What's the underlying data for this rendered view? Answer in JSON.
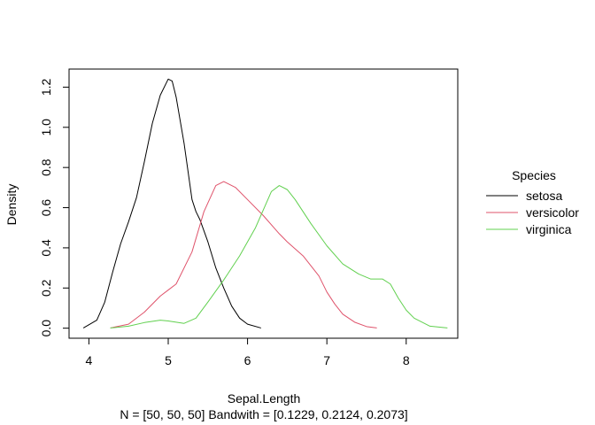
{
  "chart_data": {
    "type": "line",
    "title": "",
    "xlabel": "Sepal.Length",
    "xlabel_sub": "N = [50, 50, 50]   Bandwith = [0.1229, 0.2124, 0.2073]",
    "ylabel": "Density",
    "xlim": [
      3.75,
      8.65
    ],
    "ylim": [
      -0.05,
      1.29
    ],
    "xticks": [
      4,
      5,
      6,
      7,
      8
    ],
    "yticks": [
      0.0,
      0.2,
      0.4,
      0.6,
      0.8,
      1.0,
      1.2
    ],
    "ytick_labels": [
      "0.0",
      "0.2",
      "0.4",
      "0.6",
      "0.8",
      "1.0",
      "1.2"
    ],
    "grid": false,
    "legend": {
      "title": "Species",
      "placement": "right",
      "entries": [
        "setosa",
        "versicolor",
        "virginica"
      ]
    },
    "series": [
      {
        "name": "setosa",
        "color": "#000000",
        "points": [
          [
            3.93,
            0.001
          ],
          [
            4.1,
            0.04
          ],
          [
            4.2,
            0.13
          ],
          [
            4.3,
            0.28
          ],
          [
            4.4,
            0.42
          ],
          [
            4.5,
            0.53
          ],
          [
            4.6,
            0.65
          ],
          [
            4.7,
            0.83
          ],
          [
            4.8,
            1.02
          ],
          [
            4.9,
            1.16
          ],
          [
            5.0,
            1.24
          ],
          [
            5.05,
            1.23
          ],
          [
            5.1,
            1.15
          ],
          [
            5.2,
            0.92
          ],
          [
            5.3,
            0.64
          ],
          [
            5.35,
            0.58
          ],
          [
            5.4,
            0.54
          ],
          [
            5.5,
            0.43
          ],
          [
            5.6,
            0.3
          ],
          [
            5.7,
            0.2
          ],
          [
            5.8,
            0.11
          ],
          [
            5.9,
            0.05
          ],
          [
            6.0,
            0.02
          ],
          [
            6.17,
            0.001
          ]
        ]
      },
      {
        "name": "versicolor",
        "color": "#DF536B",
        "points": [
          [
            4.27,
            0.001
          ],
          [
            4.5,
            0.02
          ],
          [
            4.7,
            0.08
          ],
          [
            4.9,
            0.16
          ],
          [
            5.0,
            0.19
          ],
          [
            5.1,
            0.22
          ],
          [
            5.3,
            0.38
          ],
          [
            5.45,
            0.58
          ],
          [
            5.6,
            0.71
          ],
          [
            5.7,
            0.73
          ],
          [
            5.85,
            0.7
          ],
          [
            6.0,
            0.64
          ],
          [
            6.2,
            0.56
          ],
          [
            6.4,
            0.47
          ],
          [
            6.5,
            0.43
          ],
          [
            6.7,
            0.36
          ],
          [
            6.9,
            0.26
          ],
          [
            7.0,
            0.18
          ],
          [
            7.1,
            0.12
          ],
          [
            7.2,
            0.07
          ],
          [
            7.35,
            0.03
          ],
          [
            7.5,
            0.008
          ],
          [
            7.63,
            0.001
          ]
        ]
      },
      {
        "name": "virginica",
        "color": "#61D04F",
        "points": [
          [
            4.27,
            0.001
          ],
          [
            4.5,
            0.01
          ],
          [
            4.7,
            0.028
          ],
          [
            4.9,
            0.04
          ],
          [
            5.0,
            0.036
          ],
          [
            5.2,
            0.024
          ],
          [
            5.35,
            0.05
          ],
          [
            5.5,
            0.13
          ],
          [
            5.7,
            0.24
          ],
          [
            5.9,
            0.36
          ],
          [
            6.1,
            0.5
          ],
          [
            6.2,
            0.59
          ],
          [
            6.3,
            0.68
          ],
          [
            6.4,
            0.71
          ],
          [
            6.5,
            0.69
          ],
          [
            6.6,
            0.64
          ],
          [
            6.8,
            0.52
          ],
          [
            7.0,
            0.41
          ],
          [
            7.2,
            0.32
          ],
          [
            7.4,
            0.27
          ],
          [
            7.55,
            0.245
          ],
          [
            7.7,
            0.245
          ],
          [
            7.8,
            0.22
          ],
          [
            7.9,
            0.15
          ],
          [
            8.0,
            0.09
          ],
          [
            8.1,
            0.05
          ],
          [
            8.3,
            0.01
          ],
          [
            8.52,
            0.001
          ]
        ]
      }
    ]
  }
}
